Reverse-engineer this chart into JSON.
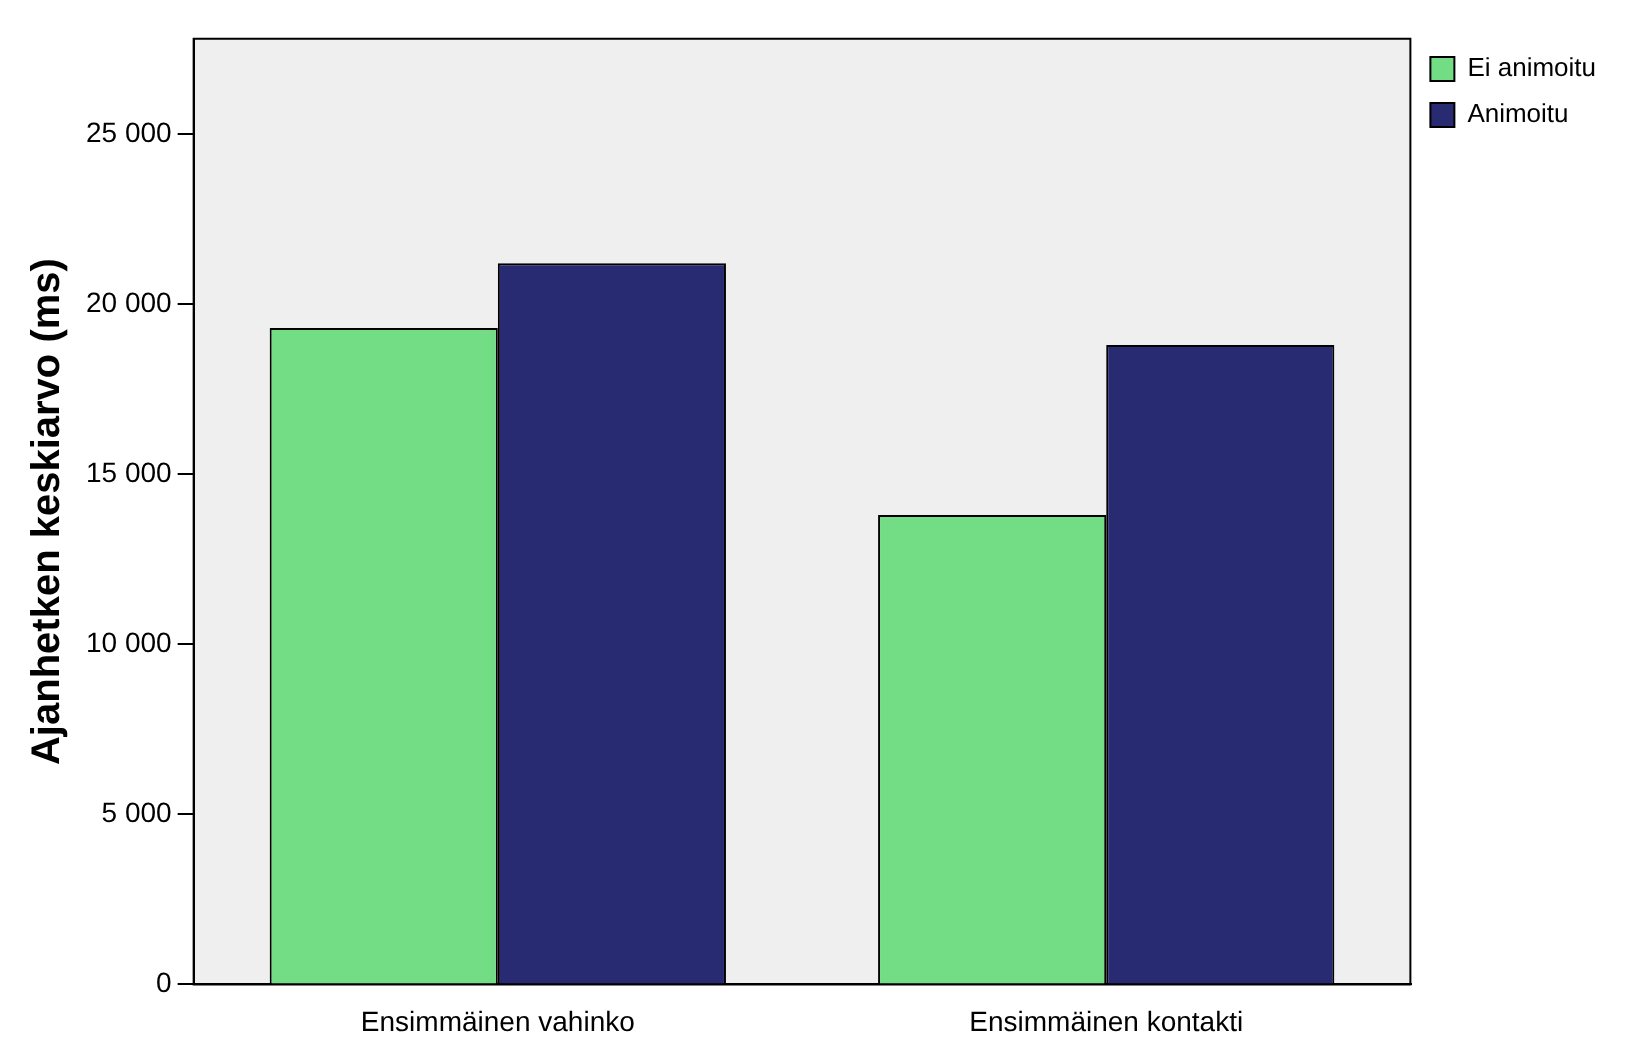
{
  "chart_data": {
    "type": "bar",
    "ylabel": "Ajanhetken keskiarvo (ms)",
    "categories": [
      "Ensimmäinen vahinko",
      "Ensimmäinen kontakti"
    ],
    "series": [
      {
        "name": "Ei animoitu",
        "color": "#72dd85",
        "values": [
          19300,
          13800
        ]
      },
      {
        "name": "Animoitu",
        "color": "#282a72",
        "values": [
          21200,
          18800
        ]
      }
    ],
    "ylim": [
      0,
      27800
    ],
    "yticks": [
      0,
      {
        "value": 5000,
        "label": "5 000"
      },
      {
        "value": 10000,
        "label": "10 000"
      },
      {
        "value": 15000,
        "label": "15 000"
      },
      {
        "value": 20000,
        "label": "20 000"
      },
      {
        "value": 25000,
        "label": "25 000"
      }
    ],
    "grid": false,
    "legend": "top right"
  }
}
